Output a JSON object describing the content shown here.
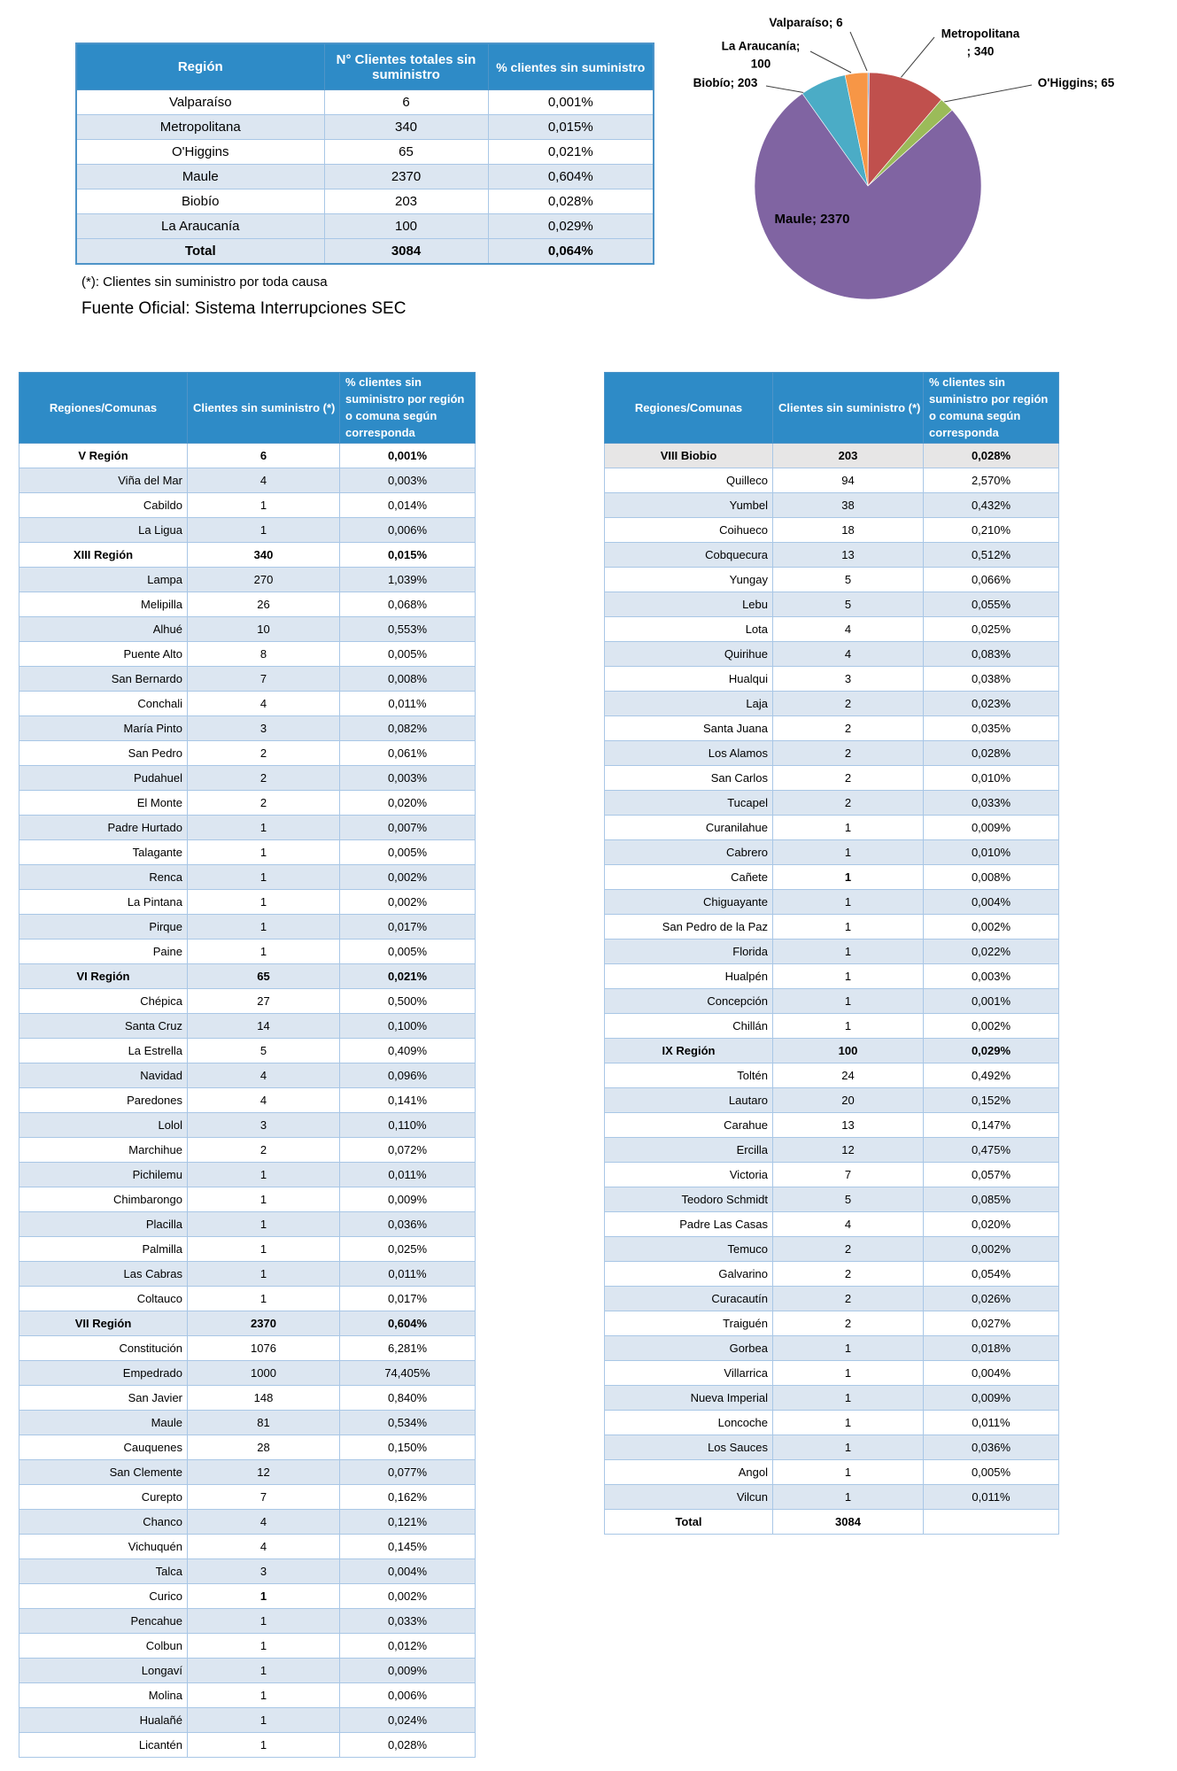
{
  "summary_table": {
    "headers": [
      "Región",
      "N° Clientes totales sin suministro",
      "% clientes sin suministro"
    ],
    "rows": [
      {
        "name": "Valparaíso",
        "val": "6",
        "pct": "0,001%",
        "style": "normal"
      },
      {
        "name": "Metropolitana",
        "val": "340",
        "pct": "0,015%",
        "style": "normal"
      },
      {
        "name": "O'Higgins",
        "val": "65",
        "pct": "0,021%",
        "style": "normal"
      },
      {
        "name": "Maule",
        "val": "2370",
        "pct": "0,604%",
        "style": "normal"
      },
      {
        "name": "Biobío",
        "val": "203",
        "pct": "0,028%",
        "style": "normal"
      },
      {
        "name": "La Araucanía",
        "val": "100",
        "pct": "0,029%",
        "style": "normal"
      },
      {
        "name": "Total",
        "val": "3084",
        "pct": "0,064%",
        "style": "total"
      }
    ]
  },
  "footnote": "(*): Clientes sin suministro por toda causa",
  "source": "Fuente Oficial: Sistema Interrupciones SEC",
  "chart_data": {
    "type": "pie",
    "labels": [
      "Valparaíso",
      "Metropolitana",
      "O'Higgins",
      "Maule",
      "Biobío",
      "La Araucanía"
    ],
    "values": [
      6,
      340,
      65,
      2370,
      203,
      100
    ],
    "colors": [
      "#4F81BD",
      "#C0504D",
      "#9BBB59",
      "#8064A2",
      "#4BACC6",
      "#F79646"
    ],
    "total": 3084,
    "legend_position": "none",
    "callouts": {
      "valparaiso": "Valparaíso; 6",
      "metropolitana": "Metropolitana\n; 340",
      "ohiggins": "O'Higgins; 65",
      "araucania": "La Araucanía;\n100",
      "biobio": "Biobío; 203",
      "maule": "Maule; 2370"
    }
  },
  "detail_tables": {
    "headers": [
      "Regiones/Comunas",
      "Clientes sin suministro (*)",
      "% clientes sin suministro por región o comuna según corresponda"
    ],
    "left_rows": [
      {
        "name": "V Región",
        "val": "6",
        "pct": "0,001%",
        "style": "region"
      },
      {
        "name": "Viña del Mar",
        "val": "4",
        "pct": "0,003%",
        "style": "comuna"
      },
      {
        "name": "Cabildo",
        "val": "1",
        "pct": "0,014%",
        "style": "comuna"
      },
      {
        "name": "La Ligua",
        "val": "1",
        "pct": "0,006%",
        "style": "comuna"
      },
      {
        "name": "XIII Región",
        "val": "340",
        "pct": "0,015%",
        "style": "region"
      },
      {
        "name": "Lampa",
        "val": "270",
        "pct": "1,039%",
        "style": "comuna"
      },
      {
        "name": "Melipilla",
        "val": "26",
        "pct": "0,068%",
        "style": "comuna"
      },
      {
        "name": "Alhué",
        "val": "10",
        "pct": "0,553%",
        "style": "comuna"
      },
      {
        "name": "Puente Alto",
        "val": "8",
        "pct": "0,005%",
        "style": "comuna"
      },
      {
        "name": "San Bernardo",
        "val": "7",
        "pct": "0,008%",
        "style": "comuna"
      },
      {
        "name": "Conchali",
        "val": "4",
        "pct": "0,011%",
        "style": "comuna"
      },
      {
        "name": "María Pinto",
        "val": "3",
        "pct": "0,082%",
        "style": "comuna"
      },
      {
        "name": "San Pedro",
        "val": "2",
        "pct": "0,061%",
        "style": "comuna"
      },
      {
        "name": "Pudahuel",
        "val": "2",
        "pct": "0,003%",
        "style": "comuna"
      },
      {
        "name": "El Monte",
        "val": "2",
        "pct": "0,020%",
        "style": "comuna"
      },
      {
        "name": "Padre Hurtado",
        "val": "1",
        "pct": "0,007%",
        "style": "comuna"
      },
      {
        "name": "Talagante",
        "val": "1",
        "pct": "0,005%",
        "style": "comuna"
      },
      {
        "name": "Renca",
        "val": "1",
        "pct": "0,002%",
        "style": "comuna"
      },
      {
        "name": "La Pintana",
        "val": "1",
        "pct": "0,002%",
        "style": "comuna"
      },
      {
        "name": "Pirque",
        "val": "1",
        "pct": "0,017%",
        "style": "comuna"
      },
      {
        "name": "Paine",
        "val": "1",
        "pct": "0,005%",
        "style": "comuna"
      },
      {
        "name": "VI Región",
        "val": "65",
        "pct": "0,021%",
        "style": "region"
      },
      {
        "name": "Chépica",
        "val": "27",
        "pct": "0,500%",
        "style": "comuna"
      },
      {
        "name": "Santa Cruz",
        "val": "14",
        "pct": "0,100%",
        "style": "comuna"
      },
      {
        "name": "La Estrella",
        "val": "5",
        "pct": "0,409%",
        "style": "comuna"
      },
      {
        "name": "Navidad",
        "val": "4",
        "pct": "0,096%",
        "style": "comuna"
      },
      {
        "name": "Paredones",
        "val": "4",
        "pct": "0,141%",
        "style": "comuna"
      },
      {
        "name": "Lolol",
        "val": "3",
        "pct": "0,110%",
        "style": "comuna"
      },
      {
        "name": "Marchihue",
        "val": "2",
        "pct": "0,072%",
        "style": "comuna"
      },
      {
        "name": "Pichilemu",
        "val": "1",
        "pct": "0,011%",
        "style": "comuna"
      },
      {
        "name": "Chimbarongo",
        "val": "1",
        "pct": "0,009%",
        "style": "comuna"
      },
      {
        "name": "Placilla",
        "val": "1",
        "pct": "0,036%",
        "style": "comuna"
      },
      {
        "name": "Palmilla",
        "val": "1",
        "pct": "0,025%",
        "style": "comuna"
      },
      {
        "name": "Las Cabras",
        "val": "1",
        "pct": "0,011%",
        "style": "comuna"
      },
      {
        "name": "Coltauco",
        "val": "1",
        "pct": "0,017%",
        "style": "comuna"
      },
      {
        "name": "VII Región",
        "val": "2370",
        "pct": "0,604%",
        "style": "region"
      },
      {
        "name": "Constitución",
        "val": "1076",
        "pct": "6,281%",
        "style": "comuna"
      },
      {
        "name": "Empedrado",
        "val": "1000",
        "pct": "74,405%",
        "style": "comuna"
      },
      {
        "name": "San Javier",
        "val": "148",
        "pct": "0,840%",
        "style": "comuna"
      },
      {
        "name": "Maule",
        "val": "81",
        "pct": "0,534%",
        "style": "comuna"
      },
      {
        "name": "Cauquenes",
        "val": "28",
        "pct": "0,150%",
        "style": "comuna"
      },
      {
        "name": "San Clemente",
        "val": "12",
        "pct": "0,077%",
        "style": "comuna"
      },
      {
        "name": "Curepto",
        "val": "7",
        "pct": "0,162%",
        "style": "comuna"
      },
      {
        "name": "Chanco",
        "val": "4",
        "pct": "0,121%",
        "style": "comuna"
      },
      {
        "name": "Vichuquén",
        "val": "4",
        "pct": "0,145%",
        "style": "comuna"
      },
      {
        "name": "Talca",
        "val": "3",
        "pct": "0,004%",
        "style": "comuna"
      },
      {
        "name": "Curico",
        "val": "1",
        "pct": "0,002%",
        "style": "boldval"
      },
      {
        "name": "Pencahue",
        "val": "1",
        "pct": "0,033%",
        "style": "comuna"
      },
      {
        "name": "Colbun",
        "val": "1",
        "pct": "0,012%",
        "style": "comuna"
      },
      {
        "name": "Longaví",
        "val": "1",
        "pct": "0,009%",
        "style": "comuna"
      },
      {
        "name": "Molina",
        "val": "1",
        "pct": "0,006%",
        "style": "comuna"
      },
      {
        "name": "Hualañé",
        "val": "1",
        "pct": "0,024%",
        "style": "comuna"
      },
      {
        "name": "Licantén",
        "val": "1",
        "pct": "0,028%",
        "style": "comuna"
      }
    ],
    "right_rows": [
      {
        "name": "VIII Biobio",
        "val": "203",
        "pct": "0,028%",
        "style": "region-gray"
      },
      {
        "name": "Quilleco",
        "val": "94",
        "pct": "2,570%",
        "style": "comuna"
      },
      {
        "name": "Yumbel",
        "val": "38",
        "pct": "0,432%",
        "style": "comuna"
      },
      {
        "name": "Coihueco",
        "val": "18",
        "pct": "0,210%",
        "style": "comuna"
      },
      {
        "name": "Cobquecura",
        "val": "13",
        "pct": "0,512%",
        "style": "comuna"
      },
      {
        "name": "Yungay",
        "val": "5",
        "pct": "0,066%",
        "style": "comuna"
      },
      {
        "name": "Lebu",
        "val": "5",
        "pct": "0,055%",
        "style": "comuna"
      },
      {
        "name": "Lota",
        "val": "4",
        "pct": "0,025%",
        "style": "comuna"
      },
      {
        "name": "Quirihue",
        "val": "4",
        "pct": "0,083%",
        "style": "comuna"
      },
      {
        "name": "Hualqui",
        "val": "3",
        "pct": "0,038%",
        "style": "comuna"
      },
      {
        "name": "Laja",
        "val": "2",
        "pct": "0,023%",
        "style": "comuna"
      },
      {
        "name": "Santa Juana",
        "val": "2",
        "pct": "0,035%",
        "style": "comuna"
      },
      {
        "name": "Los Alamos",
        "val": "2",
        "pct": "0,028%",
        "style": "comuna"
      },
      {
        "name": "San Carlos",
        "val": "2",
        "pct": "0,010%",
        "style": "comuna"
      },
      {
        "name": "Tucapel",
        "val": "2",
        "pct": "0,033%",
        "style": "comuna"
      },
      {
        "name": "Curanilahue",
        "val": "1",
        "pct": "0,009%",
        "style": "comuna"
      },
      {
        "name": "Cabrero",
        "val": "1",
        "pct": "0,010%",
        "style": "comuna"
      },
      {
        "name": "Cañete",
        "val": "1",
        "pct": "0,008%",
        "style": "boldval"
      },
      {
        "name": "Chiguayante",
        "val": "1",
        "pct": "0,004%",
        "style": "comuna"
      },
      {
        "name": "San Pedro de la Paz",
        "val": "1",
        "pct": "0,002%",
        "style": "comuna"
      },
      {
        "name": "Florida",
        "val": "1",
        "pct": "0,022%",
        "style": "comuna"
      },
      {
        "name": "Hualpén",
        "val": "1",
        "pct": "0,003%",
        "style": "comuna"
      },
      {
        "name": "Concepción",
        "val": "1",
        "pct": "0,001%",
        "style": "comuna"
      },
      {
        "name": "Chillán",
        "val": "1",
        "pct": "0,002%",
        "style": "comuna"
      },
      {
        "name": "IX Región",
        "val": "100",
        "pct": "0,029%",
        "style": "region"
      },
      {
        "name": "Toltén",
        "val": "24",
        "pct": "0,492%",
        "style": "comuna"
      },
      {
        "name": "Lautaro",
        "val": "20",
        "pct": "0,152%",
        "style": "comuna"
      },
      {
        "name": "Carahue",
        "val": "13",
        "pct": "0,147%",
        "style": "comuna"
      },
      {
        "name": "Ercilla",
        "val": "12",
        "pct": "0,475%",
        "style": "comuna"
      },
      {
        "name": "Victoria",
        "val": "7",
        "pct": "0,057%",
        "style": "comuna"
      },
      {
        "name": "Teodoro Schmidt",
        "val": "5",
        "pct": "0,085%",
        "style": "comuna"
      },
      {
        "name": "Padre Las Casas",
        "val": "4",
        "pct": "0,020%",
        "style": "comuna"
      },
      {
        "name": "Temuco",
        "val": "2",
        "pct": "0,002%",
        "style": "comuna"
      },
      {
        "name": "Galvarino",
        "val": "2",
        "pct": "0,054%",
        "style": "comuna"
      },
      {
        "name": "Curacautín",
        "val": "2",
        "pct": "0,026%",
        "style": "comuna"
      },
      {
        "name": "Traiguén",
        "val": "2",
        "pct": "0,027%",
        "style": "comuna"
      },
      {
        "name": "Gorbea",
        "val": "1",
        "pct": "0,018%",
        "style": "comuna"
      },
      {
        "name": "Villarrica",
        "val": "1",
        "pct": "0,004%",
        "style": "comuna"
      },
      {
        "name": "Nueva Imperial",
        "val": "1",
        "pct": "0,009%",
        "style": "comuna"
      },
      {
        "name": "Loncoche",
        "val": "1",
        "pct": "0,011%",
        "style": "comuna"
      },
      {
        "name": "Los Sauces",
        "val": "1",
        "pct": "0,036%",
        "style": "comuna"
      },
      {
        "name": "Angol",
        "val": "1",
        "pct": "0,005%",
        "style": "comuna"
      },
      {
        "name": "Vilcun",
        "val": "1",
        "pct": "0,011%",
        "style": "comuna"
      },
      {
        "name": "Total",
        "val": "3084",
        "pct": "",
        "style": "total"
      }
    ]
  }
}
